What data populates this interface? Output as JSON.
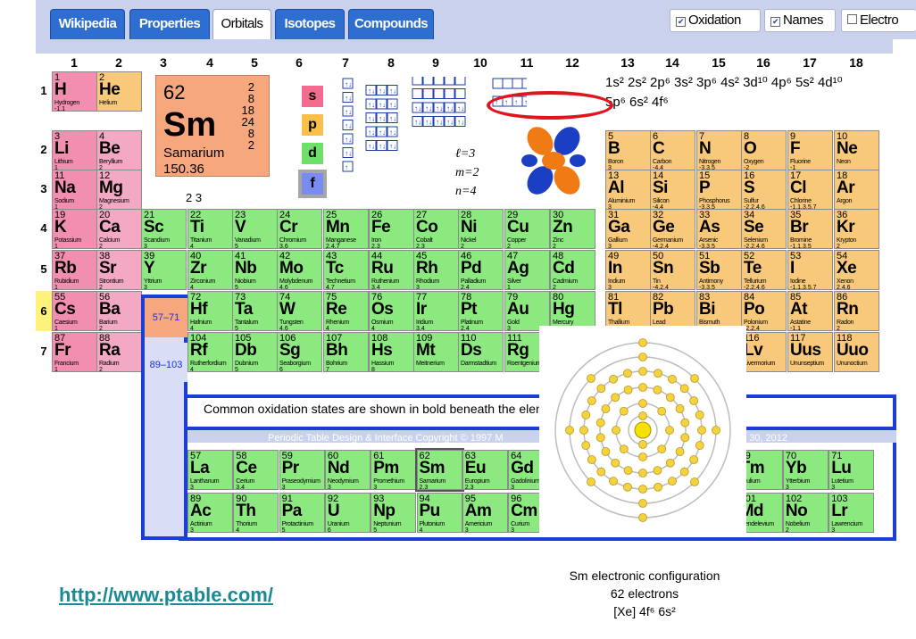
{
  "tabs": [
    "Wikipedia",
    "Properties",
    "Orbitals",
    "Isotopes",
    "Compounds"
  ],
  "checks": {
    "oxidation": "Oxidation",
    "names": "Names",
    "electrons": "Electro"
  },
  "groups": [
    "1",
    "2",
    "3",
    "4",
    "5",
    "6",
    "7",
    "8",
    "9",
    "10",
    "11",
    "12",
    "13",
    "14",
    "15",
    "16",
    "17",
    "18"
  ],
  "periods": [
    "1",
    "2",
    "3",
    "4",
    "5",
    "6",
    "7"
  ],
  "sm": {
    "z": "62",
    "sym": "Sm",
    "name": "Samarium",
    "mass": "150.36",
    "shells": [
      "2",
      "8",
      "18",
      "24",
      "8",
      "2"
    ],
    "ox": "2 3"
  },
  "blocks": [
    "s",
    "p",
    "d",
    "f"
  ],
  "orbitals": {
    "l": "ℓ=3",
    "m": "m=2",
    "n": "n=4"
  },
  "econf": {
    "line1": "1s² 2s² 2p⁶ 3s² 3p⁶ 4s² 3d¹⁰ 4p⁶ 5s² 4d¹⁰",
    "line2": "5p⁶ 6s² 4f⁶"
  },
  "ranges": {
    "la": "57–71",
    "ac": "89–103"
  },
  "note": "Common oxidation states are shown in bold beneath the elen",
  "copyright": "Periodic Table Design & Interface Copyright © 1997 M",
  "copyright_end": "p 30, 2012",
  "url": "http://www.ptable.com/",
  "caption": {
    "l1": "Sm electronic configuration",
    "l2": "62 electrons",
    "l3": "[Xe] 4f⁶ 6s²"
  },
  "elements": [
    {
      "z": "1",
      "s": "H",
      "n": "Hydrogen",
      "o": "-1,1",
      "c": "alk",
      "g": 1,
      "p": 1
    },
    {
      "z": "2",
      "s": "He",
      "n": "Helium",
      "o": "",
      "c": "pb",
      "g": 2,
      "p": 1
    },
    {
      "z": "3",
      "s": "Li",
      "n": "Lithium",
      "o": "1",
      "c": "alk",
      "g": 1,
      "p": 2
    },
    {
      "z": "4",
      "s": "Be",
      "n": "Beryllium",
      "o": "2",
      "c": "ae",
      "g": 2,
      "p": 2
    },
    {
      "z": "11",
      "s": "Na",
      "n": "Sodium",
      "o": "1",
      "c": "alk",
      "g": 1,
      "p": 3
    },
    {
      "z": "12",
      "s": "Mg",
      "n": "Magnesium",
      "o": "2",
      "c": "ae",
      "g": 2,
      "p": 3
    },
    {
      "z": "19",
      "s": "K",
      "n": "Potassium",
      "o": "1",
      "c": "alk",
      "g": 1,
      "p": 4
    },
    {
      "z": "20",
      "s": "Ca",
      "n": "Calcium",
      "o": "2",
      "c": "ae",
      "g": 2,
      "p": 4
    },
    {
      "z": "37",
      "s": "Rb",
      "n": "Rubidium",
      "o": "1",
      "c": "alk",
      "g": 1,
      "p": 5
    },
    {
      "z": "38",
      "s": "Sr",
      "n": "Strontium",
      "o": "2",
      "c": "ae",
      "g": 2,
      "p": 5
    },
    {
      "z": "55",
      "s": "Cs",
      "n": "Caesium",
      "o": "1",
      "c": "alk",
      "g": 1,
      "p": 6
    },
    {
      "z": "56",
      "s": "Ba",
      "n": "Barium",
      "o": "2",
      "c": "ae",
      "g": 2,
      "p": 6
    },
    {
      "z": "87",
      "s": "Fr",
      "n": "Francium",
      "o": "1",
      "c": "alk",
      "g": 1,
      "p": 7
    },
    {
      "z": "88",
      "s": "Ra",
      "n": "Radium",
      "o": "2",
      "c": "ae",
      "g": 2,
      "p": 7
    },
    {
      "z": "21",
      "s": "Sc",
      "n": "Scandium",
      "o": "3",
      "c": "tr",
      "g": 3,
      "p": 4
    },
    {
      "z": "22",
      "s": "Ti",
      "n": "Titanium",
      "o": "4",
      "c": "tr",
      "g": 4,
      "p": 4
    },
    {
      "z": "23",
      "s": "V",
      "n": "Vanadium",
      "o": "5",
      "c": "tr",
      "g": 5,
      "p": 4
    },
    {
      "z": "24",
      "s": "Cr",
      "n": "Chromium",
      "o": "3,6",
      "c": "tr",
      "g": 6,
      "p": 4
    },
    {
      "z": "25",
      "s": "Mn",
      "n": "Manganese",
      "o": "2,4,7",
      "c": "tr",
      "g": 7,
      "p": 4
    },
    {
      "z": "26",
      "s": "Fe",
      "n": "Iron",
      "o": "2,3",
      "c": "tr",
      "g": 8,
      "p": 4
    },
    {
      "z": "27",
      "s": "Co",
      "n": "Cobalt",
      "o": "2,3",
      "c": "tr",
      "g": 9,
      "p": 4
    },
    {
      "z": "28",
      "s": "Ni",
      "n": "Nickel",
      "o": "2",
      "c": "tr",
      "g": 10,
      "p": 4
    },
    {
      "z": "29",
      "s": "Cu",
      "n": "Copper",
      "o": "2",
      "c": "tr",
      "g": 11,
      "p": 4
    },
    {
      "z": "30",
      "s": "Zn",
      "n": "Zinc",
      "o": "2",
      "c": "tr",
      "g": 12,
      "p": 4
    },
    {
      "z": "39",
      "s": "Y",
      "n": "Yttrium",
      "o": "3",
      "c": "tr",
      "g": 3,
      "p": 5
    },
    {
      "z": "40",
      "s": "Zr",
      "n": "Zirconium",
      "o": "4",
      "c": "tr",
      "g": 4,
      "p": 5
    },
    {
      "z": "41",
      "s": "Nb",
      "n": "Niobium",
      "o": "5",
      "c": "tr",
      "g": 5,
      "p": 5
    },
    {
      "z": "42",
      "s": "Mo",
      "n": "Molybdenum",
      "o": "4,6",
      "c": "tr",
      "g": 6,
      "p": 5
    },
    {
      "z": "43",
      "s": "Tc",
      "n": "Technetium",
      "o": "4,7",
      "c": "tr",
      "g": 7,
      "p": 5
    },
    {
      "z": "44",
      "s": "Ru",
      "n": "Ruthenium",
      "o": "3,4",
      "c": "tr",
      "g": 8,
      "p": 5
    },
    {
      "z": "45",
      "s": "Rh",
      "n": "Rhodium",
      "o": "3",
      "c": "tr",
      "g": 9,
      "p": 5
    },
    {
      "z": "46",
      "s": "Pd",
      "n": "Palladium",
      "o": "2,4",
      "c": "tr",
      "g": 10,
      "p": 5
    },
    {
      "z": "47",
      "s": "Ag",
      "n": "Silver",
      "o": "1",
      "c": "tr",
      "g": 11,
      "p": 5
    },
    {
      "z": "48",
      "s": "Cd",
      "n": "Cadmium",
      "o": "2",
      "c": "tr",
      "g": 12,
      "p": 5
    },
    {
      "z": "72",
      "s": "Hf",
      "n": "Hafnium",
      "o": "4",
      "c": "tr",
      "g": 4,
      "p": 6
    },
    {
      "z": "73",
      "s": "Ta",
      "n": "Tantalum",
      "o": "5",
      "c": "tr",
      "g": 5,
      "p": 6
    },
    {
      "z": "74",
      "s": "W",
      "n": "Tungsten",
      "o": "4,6",
      "c": "tr",
      "g": 6,
      "p": 6
    },
    {
      "z": "75",
      "s": "Re",
      "n": "Rhenium",
      "o": "4",
      "c": "tr",
      "g": 7,
      "p": 6
    },
    {
      "z": "76",
      "s": "Os",
      "n": "Osmium",
      "o": "4",
      "c": "tr",
      "g": 8,
      "p": 6
    },
    {
      "z": "77",
      "s": "Ir",
      "n": "Iridium",
      "o": "3,4",
      "c": "tr",
      "g": 9,
      "p": 6
    },
    {
      "z": "78",
      "s": "Pt",
      "n": "Platinum",
      "o": "2,4",
      "c": "tr",
      "g": 10,
      "p": 6
    },
    {
      "z": "79",
      "s": "Au",
      "n": "Gold",
      "o": "3",
      "c": "tr",
      "g": 11,
      "p": 6
    },
    {
      "z": "80",
      "s": "Hg",
      "n": "Mercury",
      "o": "1,2",
      "c": "tr",
      "g": 12,
      "p": 6
    },
    {
      "z": "104",
      "s": "Rf",
      "n": "Rutherfordium",
      "o": "4",
      "c": "tr",
      "g": 4,
      "p": 7
    },
    {
      "z": "105",
      "s": "Db",
      "n": "Dubnium",
      "o": "5",
      "c": "tr",
      "g": 5,
      "p": 7
    },
    {
      "z": "106",
      "s": "Sg",
      "n": "Seaborgium",
      "o": "6",
      "c": "tr",
      "g": 6,
      "p": 7
    },
    {
      "z": "107",
      "s": "Bh",
      "n": "Bohrium",
      "o": "7",
      "c": "tr",
      "g": 7,
      "p": 7
    },
    {
      "z": "108",
      "s": "Hs",
      "n": "Hassium",
      "o": "8",
      "c": "tr",
      "g": 8,
      "p": 7
    },
    {
      "z": "109",
      "s": "Mt",
      "n": "Meitnerium",
      "o": "",
      "c": "tr",
      "g": 9,
      "p": 7
    },
    {
      "z": "110",
      "s": "Ds",
      "n": "Darmstadtium",
      "o": "",
      "c": "tr",
      "g": 10,
      "p": 7
    },
    {
      "z": "111",
      "s": "Rg",
      "n": "Roentgenium",
      "o": "",
      "c": "tr",
      "g": 11,
      "p": 7
    },
    {
      "z": "5",
      "s": "B",
      "n": "Boron",
      "o": "3",
      "c": "pb",
      "g": 13,
      "p": 2
    },
    {
      "z": "6",
      "s": "C",
      "n": "Carbon",
      "o": "-4,4",
      "c": "pb",
      "g": 14,
      "p": 2
    },
    {
      "z": "7",
      "s": "N",
      "n": "Nitrogen",
      "o": "-3,3,5",
      "c": "pb",
      "g": 15,
      "p": 2
    },
    {
      "z": "8",
      "s": "O",
      "n": "Oxygen",
      "o": "-2",
      "c": "pb",
      "g": 16,
      "p": 2
    },
    {
      "z": "9",
      "s": "F",
      "n": "Fluorine",
      "o": "-1",
      "c": "pb",
      "g": 17,
      "p": 2
    },
    {
      "z": "10",
      "s": "Ne",
      "n": "Neon",
      "o": "",
      "c": "pb",
      "g": 18,
      "p": 2
    },
    {
      "z": "13",
      "s": "Al",
      "n": "Aluminium",
      "o": "3",
      "c": "pb",
      "g": 13,
      "p": 3
    },
    {
      "z": "14",
      "s": "Si",
      "n": "Silicon",
      "o": "-4,4",
      "c": "pb",
      "g": 14,
      "p": 3
    },
    {
      "z": "15",
      "s": "P",
      "n": "Phosphorus",
      "o": "-3,3,5",
      "c": "pb",
      "g": 15,
      "p": 3
    },
    {
      "z": "16",
      "s": "S",
      "n": "Sulfur",
      "o": "-2,2,4,6",
      "c": "pb",
      "g": 16,
      "p": 3
    },
    {
      "z": "17",
      "s": "Cl",
      "n": "Chlorine",
      "o": "-1,1,3,5,7",
      "c": "pb",
      "g": 17,
      "p": 3
    },
    {
      "z": "18",
      "s": "Ar",
      "n": "Argon",
      "o": "",
      "c": "pb",
      "g": 18,
      "p": 3
    },
    {
      "z": "31",
      "s": "Ga",
      "n": "Gallium",
      "o": "3",
      "c": "pb",
      "g": 13,
      "p": 4
    },
    {
      "z": "32",
      "s": "Ge",
      "n": "Germanium",
      "o": "-4,2,4",
      "c": "pb",
      "g": 14,
      "p": 4
    },
    {
      "z": "33",
      "s": "As",
      "n": "Arsenic",
      "o": "-3,3,5",
      "c": "pb",
      "g": 15,
      "p": 4
    },
    {
      "z": "34",
      "s": "Se",
      "n": "Selenium",
      "o": "-2,2,4,6",
      "c": "pb",
      "g": 16,
      "p": 4
    },
    {
      "z": "35",
      "s": "Br",
      "n": "Bromine",
      "o": "-1,1,3,5",
      "c": "pb",
      "g": 17,
      "p": 4
    },
    {
      "z": "36",
      "s": "Kr",
      "n": "Krypton",
      "o": "2",
      "c": "pb",
      "g": 18,
      "p": 4
    },
    {
      "z": "49",
      "s": "In",
      "n": "Indium",
      "o": "3",
      "c": "pb",
      "g": 13,
      "p": 5
    },
    {
      "z": "50",
      "s": "Sn",
      "n": "Tin",
      "o": "-4,2,4",
      "c": "pb",
      "g": 14,
      "p": 5
    },
    {
      "z": "51",
      "s": "Sb",
      "n": "Antimony",
      "o": "-3,3,5",
      "c": "pb",
      "g": 15,
      "p": 5
    },
    {
      "z": "52",
      "s": "Te",
      "n": "Tellurium",
      "o": "-2,2,4,6",
      "c": "pb",
      "g": 16,
      "p": 5
    },
    {
      "z": "53",
      "s": "I",
      "n": "Iodine",
      "o": "-1,1,3,5,7",
      "c": "pb",
      "g": 17,
      "p": 5
    },
    {
      "z": "54",
      "s": "Xe",
      "n": "Xenon",
      "o": "2,4,6",
      "c": "pb",
      "g": 18,
      "p": 5
    },
    {
      "z": "81",
      "s": "Tl",
      "n": "Thallium",
      "o": "1,3",
      "c": "pb",
      "g": 13,
      "p": 6
    },
    {
      "z": "82",
      "s": "Pb",
      "n": "Lead",
      "o": "2,4",
      "c": "pb",
      "g": 14,
      "p": 6
    },
    {
      "z": "83",
      "s": "Bi",
      "n": "Bismuth",
      "o": "3",
      "c": "pb",
      "g": 15,
      "p": 6
    },
    {
      "z": "84",
      "s": "Po",
      "n": "Polonium",
      "o": "-2,2,4",
      "c": "pb",
      "g": 16,
      "p": 6
    },
    {
      "z": "85",
      "s": "At",
      "n": "Astatine",
      "o": "-1,1",
      "c": "pb",
      "g": 17,
      "p": 6
    },
    {
      "z": "86",
      "s": "Rn",
      "n": "Radon",
      "o": "2",
      "c": "pb",
      "g": 18,
      "p": 6
    },
    {
      "z": "116",
      "s": "Lv",
      "n": "Livermorium",
      "o": "",
      "c": "pb",
      "g": 16,
      "p": 7
    },
    {
      "z": "117",
      "s": "Uus",
      "n": "Ununseptium",
      "o": "",
      "c": "pb",
      "g": 17,
      "p": 7
    },
    {
      "z": "118",
      "s": "Uuo",
      "n": "Ununoctium",
      "o": "",
      "c": "pb",
      "g": 18,
      "p": 7
    }
  ],
  "fseries": [
    {
      "z": "57",
      "s": "La",
      "n": "Lanthanum",
      "o": "3",
      "r": 0,
      "i": 0
    },
    {
      "z": "58",
      "s": "Ce",
      "n": "Cerium",
      "o": "3,4",
      "r": 0,
      "i": 1
    },
    {
      "z": "59",
      "s": "Pr",
      "n": "Praseodymium",
      "o": "3",
      "r": 0,
      "i": 2
    },
    {
      "z": "60",
      "s": "Nd",
      "n": "Neodymium",
      "o": "3",
      "r": 0,
      "i": 3
    },
    {
      "z": "61",
      "s": "Pm",
      "n": "Promethium",
      "o": "3",
      "r": 0,
      "i": 4
    },
    {
      "z": "62",
      "s": "Sm",
      "n": "Samarium",
      "o": "2,3",
      "r": 0,
      "i": 5
    },
    {
      "z": "63",
      "s": "Eu",
      "n": "Europium",
      "o": "2,3",
      "r": 0,
      "i": 6
    },
    {
      "z": "64",
      "s": "Gd",
      "n": "Gadolinium",
      "o": "3",
      "r": 0,
      "i": 7
    },
    {
      "z": "69",
      "s": "Tm",
      "n": "Thulium",
      "o": "3",
      "r": 0,
      "i": 12
    },
    {
      "z": "70",
      "s": "Yb",
      "n": "Ytterbium",
      "o": "3",
      "r": 0,
      "i": 13
    },
    {
      "z": "71",
      "s": "Lu",
      "n": "Lutetium",
      "o": "3",
      "r": 0,
      "i": 14
    },
    {
      "z": "89",
      "s": "Ac",
      "n": "Actinium",
      "o": "3",
      "r": 1,
      "i": 0
    },
    {
      "z": "90",
      "s": "Th",
      "n": "Thorium",
      "o": "4",
      "r": 1,
      "i": 1
    },
    {
      "z": "91",
      "s": "Pa",
      "n": "Protactinium",
      "o": "5",
      "r": 1,
      "i": 2
    },
    {
      "z": "92",
      "s": "U",
      "n": "Uranium",
      "o": "6",
      "r": 1,
      "i": 3
    },
    {
      "z": "93",
      "s": "Np",
      "n": "Neptunium",
      "o": "5",
      "r": 1,
      "i": 4
    },
    {
      "z": "94",
      "s": "Pu",
      "n": "Plutonium",
      "o": "4",
      "r": 1,
      "i": 5
    },
    {
      "z": "95",
      "s": "Am",
      "n": "Americium",
      "o": "3",
      "r": 1,
      "i": 6
    },
    {
      "z": "96",
      "s": "Cm",
      "n": "Curium",
      "o": "3",
      "r": 1,
      "i": 7
    },
    {
      "z": "101",
      "s": "Md",
      "n": "Mendelevium",
      "o": "3",
      "r": 1,
      "i": 12
    },
    {
      "z": "102",
      "s": "No",
      "n": "Nobelium",
      "o": "2",
      "r": 1,
      "i": 13
    },
    {
      "z": "103",
      "s": "Lr",
      "n": "Lawrencium",
      "o": "3",
      "r": 1,
      "i": 14
    }
  ],
  "colors": {
    "alk": "#f28fb0",
    "ae": "#f3a8c4",
    "tr": "#8ce97f",
    "pb": "#f8c97a",
    "frame": "#1a3fd6",
    "sm": "#f7a77e"
  }
}
